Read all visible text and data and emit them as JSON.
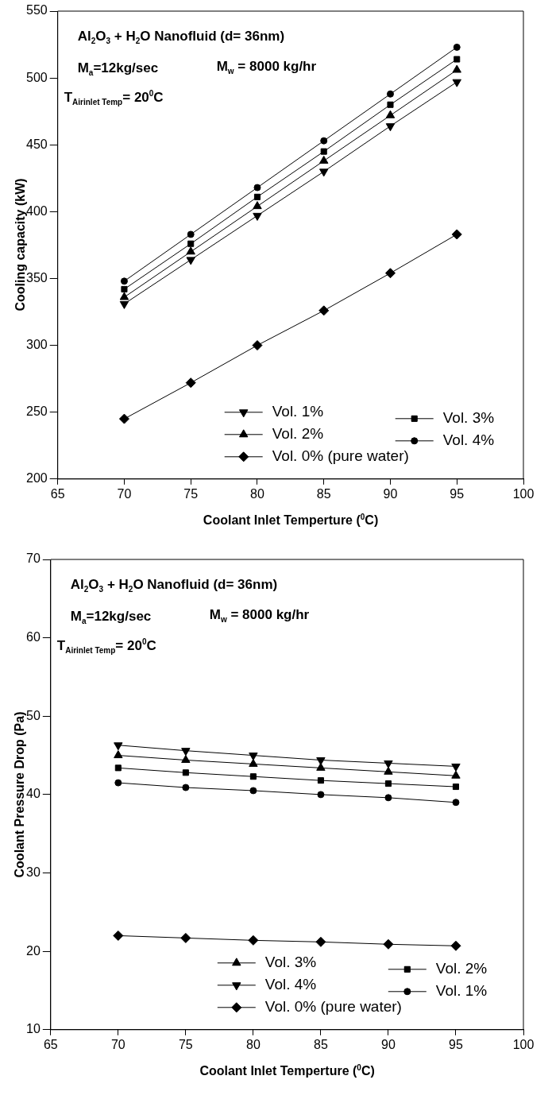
{
  "chart_data": [
    {
      "type": "line",
      "xlabel": "Coolant Inlet Temperture ($^{0}$C)",
      "ylabel": "Cooling capacity (kW)",
      "x": [
        70,
        75,
        80,
        85,
        90,
        95
      ],
      "xlim": [
        65,
        100
      ],
      "xticks": [
        65,
        70,
        75,
        80,
        85,
        90,
        95,
        100
      ],
      "ylim": [
        200,
        550
      ],
      "yticks": [
        200,
        250,
        300,
        350,
        400,
        450,
        500,
        550
      ],
      "grid": false,
      "legend": "bottom right",
      "line_style": "solid",
      "annotations": [
        "Al$_{2}$O$_{3}$ + H$_{2}$O Nanofluid (d= 36nm)",
        "M$_{a}$=12kg/sec",
        "M$_{w}$ = 8000 kg/hr",
        "T$_{Airinlet Temp}$= 20$^{0}$C"
      ],
      "series": [
        {
          "name": "Vol. 1%",
          "color": "#000000",
          "marker": "triangle-down",
          "values": [
            331,
            364,
            397,
            430,
            464,
            497
          ]
        },
        {
          "name": "Vol. 3%",
          "color": "#000000",
          "marker": "square",
          "values": [
            342,
            376,
            411,
            445,
            480,
            514
          ]
        },
        {
          "name": "Vol. 2%",
          "color": "#000000",
          "marker": "triangle",
          "values": [
            336,
            370,
            404,
            438,
            472,
            506
          ]
        },
        {
          "name": "Vol. 4%",
          "color": "#000000",
          "marker": "circle",
          "values": [
            348,
            383,
            418,
            453,
            488,
            523
          ]
        },
        {
          "name": "Vol. 0% (pure water)",
          "color": "#000000",
          "marker": "diamond",
          "values": [
            245,
            272,
            300,
            326,
            354,
            383
          ]
        }
      ]
    },
    {
      "type": "line",
      "xlabel": "Coolant Inlet Temperture ($^{0}$C)",
      "ylabel": "Coolant Pressure Drop (Pa)",
      "x": [
        70,
        75,
        80,
        85,
        90,
        95
      ],
      "xlim": [
        65,
        100
      ],
      "xticks": [
        65,
        70,
        75,
        80,
        85,
        90,
        95,
        100
      ],
      "ylim": [
        10,
        70
      ],
      "yticks": [
        10,
        20,
        30,
        40,
        50,
        60,
        70
      ],
      "grid": false,
      "legend": "bottom right",
      "line_style": "solid",
      "annotations": [
        "Al$_{2}$O$_{3}$ + H$_{2}$O Nanofluid (d= 36nm)",
        "M$_{a}$=12kg/sec",
        "M$_{w}$ = 8000 kg/hr",
        "T$_{Airinlet Temp}$= 20$^{0}$C"
      ],
      "series": [
        {
          "name": "Vol. 3%",
          "color": "#000000",
          "marker": "triangle",
          "values": [
            45.0,
            44.4,
            43.9,
            43.4,
            42.9,
            42.4
          ]
        },
        {
          "name": "Vol. 2%",
          "color": "#000000",
          "marker": "square",
          "values": [
            43.4,
            42.8,
            42.3,
            41.8,
            41.4,
            41.0
          ]
        },
        {
          "name": "Vol. 4%",
          "color": "#000000",
          "marker": "triangle-down",
          "values": [
            46.3,
            45.6,
            45.0,
            44.4,
            44.0,
            43.6
          ]
        },
        {
          "name": "Vol. 1%",
          "color": "#000000",
          "marker": "circle",
          "values": [
            41.5,
            40.9,
            40.5,
            40.0,
            39.6,
            39.0
          ]
        },
        {
          "name": "Vol. 0% (pure water)",
          "color": "#000000",
          "marker": "diamond",
          "values": [
            22.0,
            21.7,
            21.4,
            21.2,
            20.9,
            20.7
          ]
        }
      ]
    }
  ]
}
